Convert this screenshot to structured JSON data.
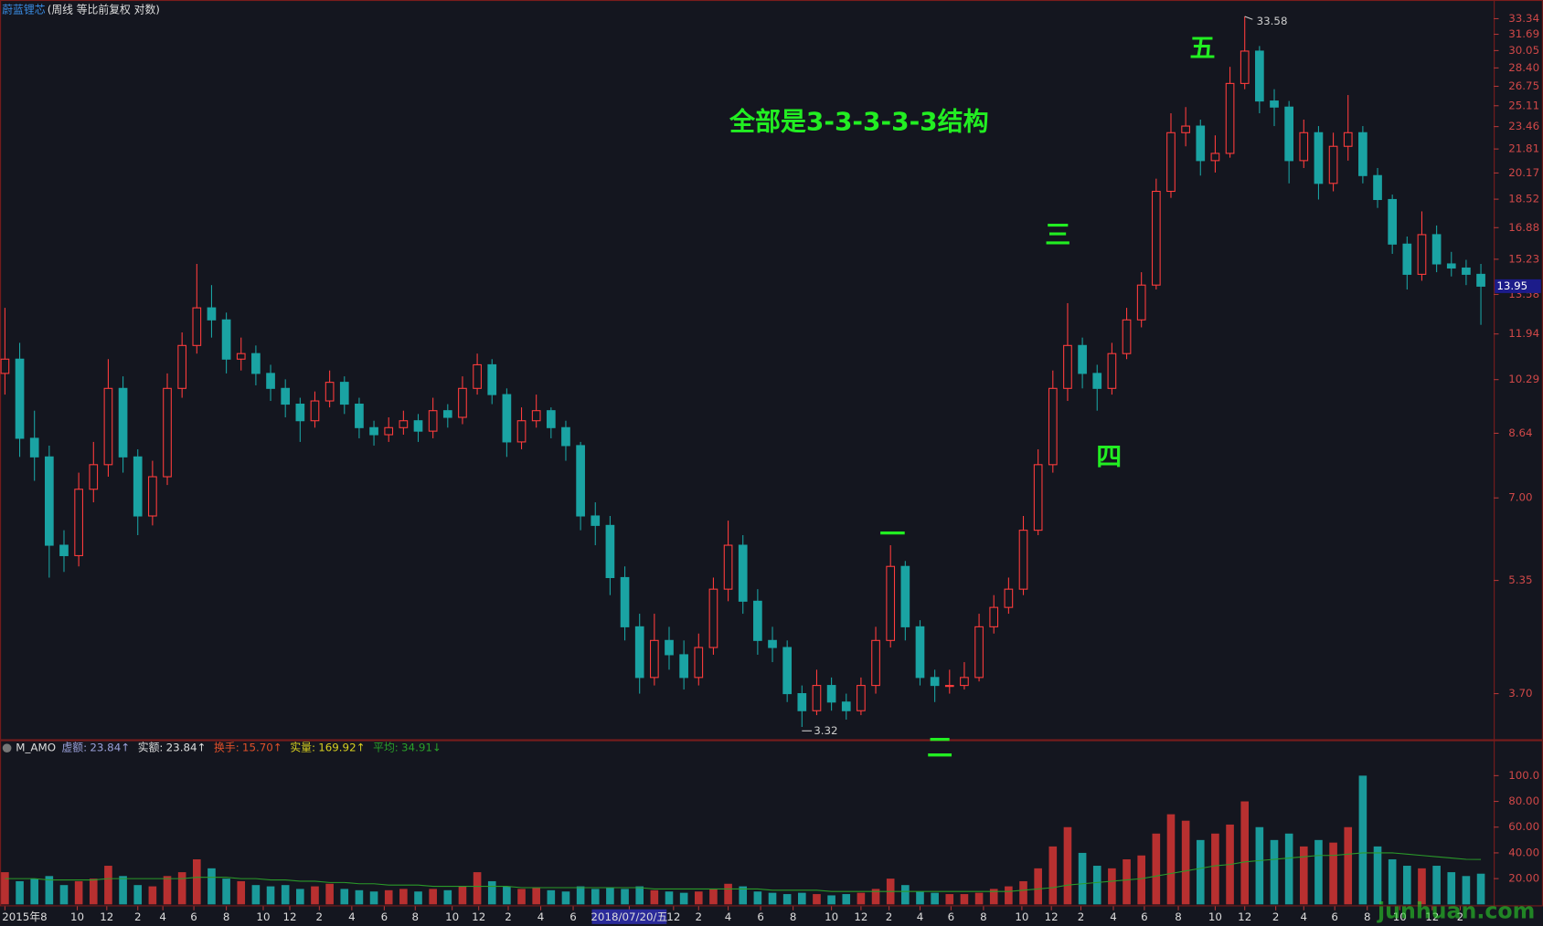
{
  "chart_data": [
    {
      "type": "candlestick",
      "title": "蔚蓝锂芯",
      "subtitle": "(周线 等比前复权 对数)",
      "log_scale": true,
      "up_color": "#ff3c3c",
      "down_color": "#1aa3a3",
      "open": [
        10.5,
        11.0,
        8.5,
        8.0,
        6.0,
        5.8,
        7.2,
        7.8,
        10.0,
        8.0,
        6.6,
        7.5,
        10.0,
        11.5,
        13.0,
        12.5,
        11.0,
        11.2,
        10.5,
        10.0,
        9.5,
        9.0,
        9.6,
        10.2,
        9.5,
        8.8,
        8.6,
        8.8,
        9.0,
        8.7,
        9.3,
        9.1,
        10.0,
        10.8,
        9.8,
        8.4,
        9.0,
        9.3,
        8.8,
        8.3,
        6.6,
        6.4,
        5.4,
        4.6,
        3.9,
        4.4,
        4.2,
        3.9,
        4.3,
        5.2,
        6.0,
        5.0,
        4.4,
        4.3,
        3.7,
        3.5,
        3.8,
        3.6,
        3.5,
        3.8,
        4.4,
        5.6,
        4.6,
        3.9,
        3.8,
        3.8,
        3.9,
        4.6,
        4.9,
        5.2,
        6.3,
        7.8,
        10.0,
        11.5,
        10.5,
        10.0,
        11.2,
        12.5,
        14.0,
        19.0,
        23.0,
        23.5,
        21.0,
        21.5,
        27.0,
        30.0,
        25.5,
        25.0,
        21.0,
        23.0,
        19.5,
        22.0,
        23.0,
        20.0,
        18.5,
        16.0,
        14.5,
        16.5,
        15.0,
        14.8,
        14.5
      ],
      "high": [
        13.0,
        11.6,
        9.3,
        8.3,
        6.3,
        7.6,
        8.4,
        11.0,
        10.4,
        8.2,
        7.9,
        10.5,
        12.0,
        15.0,
        14.0,
        12.8,
        11.8,
        11.5,
        10.8,
        10.3,
        9.7,
        9.9,
        10.6,
        10.4,
        9.7,
        9.0,
        9.1,
        9.3,
        9.2,
        9.7,
        9.5,
        10.4,
        11.2,
        11.0,
        10.0,
        9.4,
        9.8,
        9.4,
        9.0,
        8.4,
        6.9,
        6.6,
        5.6,
        4.8,
        4.8,
        4.6,
        4.4,
        4.5,
        5.4,
        6.5,
        6.2,
        5.2,
        4.6,
        4.4,
        3.8,
        4.0,
        3.9,
        3.7,
        3.9,
        4.6,
        6.0,
        5.7,
        4.7,
        4.0,
        4.0,
        4.1,
        4.8,
        5.1,
        5.4,
        6.6,
        8.2,
        10.6,
        13.2,
        11.8,
        10.8,
        11.6,
        13.0,
        14.6,
        19.8,
        24.5,
        25.0,
        24.0,
        22.8,
        28.5,
        33.58,
        30.5,
        26.5,
        25.5,
        24.0,
        23.5,
        23.0,
        26.0,
        23.5,
        20.5,
        18.8,
        16.4,
        17.8,
        17.0,
        15.6,
        15.2,
        15.0
      ],
      "low": [
        9.8,
        8.0,
        7.4,
        5.4,
        5.5,
        5.6,
        6.9,
        7.5,
        7.6,
        6.2,
        6.4,
        7.3,
        9.7,
        11.2,
        11.8,
        10.5,
        10.6,
        10.1,
        9.6,
        9.1,
        8.4,
        8.8,
        9.4,
        9.2,
        8.5,
        8.3,
        8.4,
        8.6,
        8.4,
        8.5,
        8.8,
        8.9,
        9.8,
        9.5,
        8.0,
        8.2,
        8.8,
        8.5,
        7.9,
        6.3,
        6.0,
        5.1,
        4.4,
        3.7,
        3.8,
        4.0,
        3.75,
        3.8,
        4.2,
        5.0,
        4.8,
        4.2,
        4.1,
        3.6,
        3.32,
        3.45,
        3.5,
        3.4,
        3.45,
        3.7,
        4.3,
        4.4,
        3.8,
        3.6,
        3.7,
        3.75,
        3.85,
        4.5,
        4.8,
        5.1,
        6.2,
        7.6,
        9.6,
        10.0,
        9.3,
        9.8,
        11.0,
        12.2,
        13.8,
        18.6,
        22.0,
        20.0,
        20.2,
        21.2,
        26.5,
        24.5,
        23.5,
        19.5,
        20.5,
        18.5,
        19.0,
        21.0,
        19.5,
        18.0,
        15.5,
        13.8,
        14.2,
        14.6,
        14.4,
        14.0,
        12.3
      ],
      "close": [
        11.0,
        8.5,
        8.0,
        6.0,
        5.8,
        7.2,
        7.8,
        10.0,
        8.0,
        6.6,
        7.5,
        10.0,
        11.5,
        13.0,
        12.5,
        11.0,
        11.2,
        10.5,
        10.0,
        9.5,
        9.0,
        9.6,
        10.2,
        9.5,
        8.8,
        8.6,
        8.8,
        9.0,
        8.7,
        9.3,
        9.1,
        10.0,
        10.8,
        9.8,
        8.4,
        9.0,
        9.3,
        8.8,
        8.3,
        6.6,
        6.4,
        5.4,
        4.6,
        3.9,
        4.4,
        4.2,
        3.9,
        4.3,
        5.2,
        6.0,
        5.0,
        4.4,
        4.3,
        3.7,
        3.5,
        3.8,
        3.6,
        3.5,
        3.8,
        4.4,
        5.6,
        4.6,
        3.9,
        3.8,
        3.8,
        3.9,
        4.6,
        4.9,
        5.2,
        6.3,
        7.8,
        10.0,
        11.5,
        10.5,
        10.0,
        11.2,
        12.5,
        14.0,
        19.0,
        23.0,
        23.5,
        21.0,
        21.5,
        27.0,
        30.0,
        25.5,
        25.0,
        21.0,
        23.0,
        19.5,
        22.0,
        23.0,
        20.0,
        18.5,
        16.0,
        14.5,
        16.5,
        15.0,
        14.8,
        14.5,
        13.95
      ],
      "xlim": [
        -0.33,
        100.87
      ],
      "ylim": [
        3.21,
        34.87
      ],
      "yticks": [
        {
          "value": 3.7,
          "label": "3.70"
        },
        {
          "value": 5.35,
          "label": "5.35"
        },
        {
          "value": 7,
          "label": "7.00"
        },
        {
          "value": 8.64,
          "label": "8.64"
        },
        {
          "value": 10.29,
          "label": "10.29"
        },
        {
          "value": 11.94,
          "label": "11.94"
        },
        {
          "value": 13.58,
          "label": "13.58"
        },
        {
          "value": 15.23,
          "label": "15.23"
        },
        {
          "value": 16.88,
          "label": "16.88"
        },
        {
          "value": 18.52,
          "label": "18.52"
        },
        {
          "value": 20.17,
          "label": "20.17"
        },
        {
          "value": 21.81,
          "label": "21.81"
        },
        {
          "value": 23.46,
          "label": "23.46"
        },
        {
          "value": 25.11,
          "label": "25.11"
        },
        {
          "value": 26.75,
          "label": "26.75"
        },
        {
          "value": 28.4,
          "label": "28.40"
        },
        {
          "value": 30.05,
          "label": "30.05"
        },
        {
          "value": 31.69,
          "label": "31.69"
        },
        {
          "value": 33.34,
          "label": "33.34"
        }
      ],
      "xticks": [
        {
          "value": 0,
          "label": "2015年8"
        },
        {
          "value": 4.9,
          "label": "10"
        },
        {
          "value": 6.9,
          "label": "12"
        },
        {
          "value": 9,
          "label": "2"
        },
        {
          "value": 10.7,
          "label": "4"
        },
        {
          "value": 12.8,
          "label": "6"
        },
        {
          "value": 15,
          "label": "8"
        },
        {
          "value": 17.5,
          "label": "10"
        },
        {
          "value": 19.3,
          "label": "12"
        },
        {
          "value": 21.3,
          "label": "2"
        },
        {
          "value": 23.5,
          "label": "4"
        },
        {
          "value": 25.7,
          "label": "6"
        },
        {
          "value": 27.8,
          "label": "8"
        },
        {
          "value": 30.3,
          "label": "10"
        },
        {
          "value": 32.1,
          "label": "12"
        },
        {
          "value": 34.1,
          "label": "2"
        },
        {
          "value": 36.3,
          "label": "4"
        },
        {
          "value": 38.5,
          "label": "6"
        },
        {
          "value": 42.3,
          "label": "2018/07/20/五"
        },
        {
          "value": 45.3,
          "label": "12"
        },
        {
          "value": 47,
          "label": "2"
        },
        {
          "value": 49,
          "label": "4"
        },
        {
          "value": 51.2,
          "label": "6"
        },
        {
          "value": 53.4,
          "label": "8"
        },
        {
          "value": 56,
          "label": "10"
        },
        {
          "value": 58,
          "label": "12"
        },
        {
          "value": 59.9,
          "label": "2"
        },
        {
          "value": 62,
          "label": "4"
        },
        {
          "value": 64.1,
          "label": "6"
        },
        {
          "value": 66.3,
          "label": "8"
        },
        {
          "value": 68.9,
          "label": "10"
        },
        {
          "value": 70.9,
          "label": "12"
        },
        {
          "value": 72.9,
          "label": "2"
        },
        {
          "value": 75.1,
          "label": "4"
        },
        {
          "value": 77.2,
          "label": "6"
        },
        {
          "value": 79.5,
          "label": "8"
        },
        {
          "value": 82,
          "label": "10"
        },
        {
          "value": 84,
          "label": "12"
        },
        {
          "value": 86.1,
          "label": "2"
        },
        {
          "value": 88,
          "label": "4"
        },
        {
          "value": 90.1,
          "label": "6"
        },
        {
          "value": 92.3,
          "label": "8"
        },
        {
          "value": 94.5,
          "label": "10"
        },
        {
          "value": 96.7,
          "label": "12"
        },
        {
          "value": 98.6,
          "label": "2"
        }
      ],
      "annotations": [
        "全部是3-3-3-3-3结构",
        "一",
        "二",
        "三",
        "四",
        "五"
      ],
      "annotation_color": "#22ee22"
    },
    {
      "type": "bar",
      "indicator": "M_AMO",
      "values": [
        25,
        18,
        20,
        22,
        15,
        18,
        20,
        30,
        22,
        15,
        14,
        22,
        25,
        35,
        28,
        20,
        18,
        15,
        14,
        15,
        12,
        14,
        16,
        12,
        11,
        10,
        11,
        12,
        10,
        12,
        11,
        14,
        25,
        18,
        14,
        12,
        13,
        11,
        10,
        14,
        12,
        13,
        12,
        14,
        11,
        10,
        9,
        10,
        12,
        16,
        14,
        10,
        9,
        8,
        9,
        8,
        7,
        8,
        9,
        12,
        20,
        15,
        10,
        9,
        8,
        8,
        9,
        12,
        14,
        18,
        28,
        45,
        60,
        40,
        30,
        28,
        35,
        38,
        55,
        70,
        65,
        50,
        55,
        62,
        80,
        60,
        50,
        55,
        45,
        50,
        48,
        60,
        100,
        45,
        35,
        30,
        28,
        30,
        25,
        22,
        23.84
      ],
      "ma": {
        "color": "#2a9a2a",
        "values": [
          20,
          20,
          20,
          19,
          19,
          19,
          19,
          20,
          20,
          20,
          20,
          20,
          20,
          21,
          21,
          21,
          20,
          20,
          19,
          19,
          18,
          18,
          17,
          17,
          16,
          16,
          15,
          15,
          15,
          14,
          14,
          14,
          14,
          14,
          14,
          13,
          13,
          13,
          13,
          13,
          13,
          13,
          13,
          13,
          12,
          12,
          12,
          12,
          12,
          12,
          12,
          12,
          11,
          11,
          11,
          11,
          10,
          10,
          10,
          10,
          10,
          10,
          10,
          10,
          10,
          10,
          10,
          10,
          10,
          11,
          12,
          13,
          15,
          16,
          17,
          18,
          19,
          20,
          22,
          24,
          26,
          28,
          30,
          31,
          33,
          34,
          35,
          36,
          37,
          38,
          38,
          39,
          40,
          40,
          40,
          39,
          38,
          37,
          36,
          35,
          34.91
        ]
      },
      "readouts": [
        {
          "name": "虚额:",
          "text": "23.84↑",
          "color": "#9aa0d8"
        },
        {
          "name": "实额:",
          "text": "23.84↑",
          "color": "#dddddd"
        },
        {
          "name": "换手:",
          "text": "15.70↑",
          "color": "#e0502a"
        },
        {
          "name": "实量:",
          "text": "169.92↑",
          "color": "#d8d020"
        },
        {
          "name": "平均:",
          "text": "34.91↓",
          "color": "#2aa02a"
        }
      ],
      "ylim": [
        0,
        126
      ],
      "yticks": [
        {
          "value": 20,
          "label": "20.00"
        },
        {
          "value": 40,
          "label": "40.00"
        },
        {
          "value": 60,
          "label": "60.00"
        },
        {
          "value": 80,
          "label": "80.00"
        },
        {
          "value": 100,
          "label": "100.0"
        }
      ],
      "watermark": "junhuan.com"
    }
  ]
}
